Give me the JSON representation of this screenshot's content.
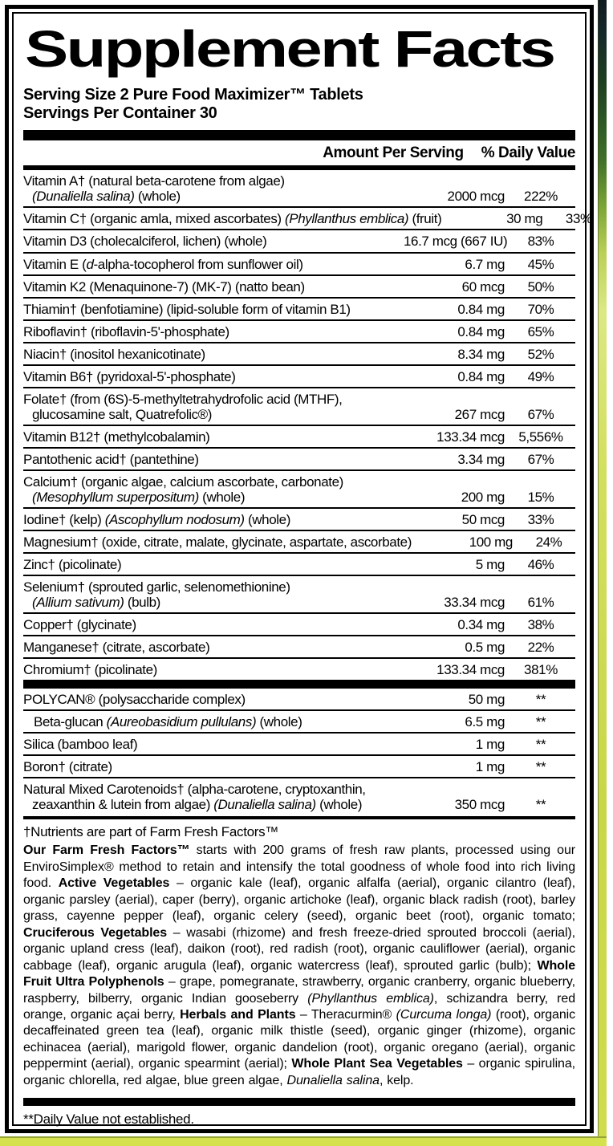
{
  "colors": {
    "label_background": "#ffffff",
    "label_border": "#000000",
    "bottom_strip": "#d6e14e",
    "right_strip_top": "#101820",
    "right_strip_bottom": "#cfdc4e"
  },
  "title": "Supplement Facts",
  "serving": {
    "size_line": "Serving Size 2 Pure Food Maximizer™ Tablets",
    "container_line": "Servings Per Container 30"
  },
  "columns": {
    "amount_header": "Amount Per Serving",
    "dv_header": "% Daily Value"
  },
  "nutrients": [
    {
      "group": 1,
      "lines": [
        [
          {
            "t": "Vitamin A† (natural beta-carotene from algae)"
          }
        ],
        [
          {
            "t": "(Dunaliella salina)",
            "i": true
          },
          {
            "t": " (whole)"
          }
        ]
      ],
      "amount": "2000 mcg",
      "dv": "222%"
    },
    {
      "group": 1,
      "lines": [
        [
          {
            "t": "Vitamin C† (organic amla, mixed ascorbates) "
          },
          {
            "t": "(Phyllanthus emblica)",
            "i": true
          },
          {
            "t": " (fruit)"
          }
        ]
      ],
      "amount": "30 mg",
      "dv": "33%"
    },
    {
      "group": 1,
      "lines": [
        [
          {
            "t": "Vitamin D3 (cholecalciferol, lichen) (whole)"
          }
        ]
      ],
      "amount": "16.7 mcg (667 IU)",
      "dv": "83%"
    },
    {
      "group": 1,
      "lines": [
        [
          {
            "t": "Vitamin E ("
          },
          {
            "t": "d",
            "i": true
          },
          {
            "t": "-alpha-tocopherol from sunflower oil)"
          }
        ]
      ],
      "amount": "6.7 mg",
      "dv": "45%"
    },
    {
      "group": 1,
      "lines": [
        [
          {
            "t": "Vitamin K2 (Menaquinone-7) (MK-7) (natto bean)"
          }
        ]
      ],
      "amount": "60 mcg",
      "dv": "50%"
    },
    {
      "group": 1,
      "lines": [
        [
          {
            "t": "Thiamin† (benfotiamine) (lipid-soluble form of vitamin B1)"
          }
        ]
      ],
      "amount": "0.84 mg",
      "dv": "70%"
    },
    {
      "group": 1,
      "lines": [
        [
          {
            "t": "Riboflavin† (riboflavin-5'-phosphate)"
          }
        ]
      ],
      "amount": "0.84 mg",
      "dv": "65%"
    },
    {
      "group": 1,
      "lines": [
        [
          {
            "t": "Niacin† (inositol hexanicotinate)"
          }
        ]
      ],
      "amount": "8.34 mg",
      "dv": "52%"
    },
    {
      "group": 1,
      "lines": [
        [
          {
            "t": "Vitamin B6† (pyridoxal-5'-phosphate)"
          }
        ]
      ],
      "amount": "0.84 mg",
      "dv": "49%"
    },
    {
      "group": 1,
      "lines": [
        [
          {
            "t": "Folate† (from (6S)-5-methyltetrahydrofolic acid (MTHF),"
          }
        ],
        [
          {
            "t": "glucosamine salt, Quatrefolic®)"
          }
        ]
      ],
      "amount": "267 mcg",
      "dv": "67%"
    },
    {
      "group": 1,
      "lines": [
        [
          {
            "t": "Vitamin B12† (methylcobalamin)"
          }
        ]
      ],
      "amount": "133.34 mcg",
      "dv": "5,556%"
    },
    {
      "group": 1,
      "lines": [
        [
          {
            "t": "Pantothenic acid† (pantethine)"
          }
        ]
      ],
      "amount": "3.34 mg",
      "dv": "67%"
    },
    {
      "group": 1,
      "lines": [
        [
          {
            "t": "Calcium† (organic algae, calcium ascorbate, carbonate)"
          }
        ],
        [
          {
            "t": "(Mesophyllum superpositum)",
            "i": true
          },
          {
            "t": " (whole)"
          }
        ]
      ],
      "amount": "200 mg",
      "dv": "15%"
    },
    {
      "group": 1,
      "lines": [
        [
          {
            "t": "Iodine† (kelp) "
          },
          {
            "t": "(Ascophyllum nodosum)",
            "i": true
          },
          {
            "t": " (whole)"
          }
        ]
      ],
      "amount": "50 mcg",
      "dv": "33%"
    },
    {
      "group": 1,
      "lines": [
        [
          {
            "t": "Magnesium† (oxide, citrate, malate, glycinate, aspartate, ascorbate)"
          }
        ]
      ],
      "amount": "100 mg",
      "dv": "24%"
    },
    {
      "group": 1,
      "lines": [
        [
          {
            "t": "Zinc† (picolinate)"
          }
        ]
      ],
      "amount": "5 mg",
      "dv": "46%"
    },
    {
      "group": 1,
      "lines": [
        [
          {
            "t": "Selenium† (sprouted garlic, selenomethionine)"
          }
        ],
        [
          {
            "t": "(Allium sativum)",
            "i": true
          },
          {
            "t": " (bulb)"
          }
        ]
      ],
      "amount": "33.34 mcg",
      "dv": "61%"
    },
    {
      "group": 1,
      "lines": [
        [
          {
            "t": "Copper† (glycinate)"
          }
        ]
      ],
      "amount": "0.34 mg",
      "dv": "38%"
    },
    {
      "group": 1,
      "lines": [
        [
          {
            "t": "Manganese† (citrate, ascorbate)"
          }
        ]
      ],
      "amount": "0.5 mg",
      "dv": "22%"
    },
    {
      "group": 1,
      "lines": [
        [
          {
            "t": "Chromium† (picolinate)"
          }
        ]
      ],
      "amount": "133.34 mcg",
      "dv": "381%"
    },
    {
      "group": 2,
      "lines": [
        [
          {
            "t": "POLYCAN® (polysaccharide complex)"
          }
        ]
      ],
      "amount": "50 mg",
      "dv": "**"
    },
    {
      "group": 2,
      "indent": true,
      "lines": [
        [
          {
            "t": "Beta-glucan "
          },
          {
            "t": "(Aureobasidium pullulans)",
            "i": true
          },
          {
            "t": " (whole)"
          }
        ]
      ],
      "amount": "6.5 mg",
      "dv": "**"
    },
    {
      "group": 2,
      "lines": [
        [
          {
            "t": "Silica (bamboo leaf)"
          }
        ]
      ],
      "amount": "1 mg",
      "dv": "**"
    },
    {
      "group": 2,
      "lines": [
        [
          {
            "t": "Boron† (citrate)"
          }
        ]
      ],
      "amount": "1 mg",
      "dv": "**"
    },
    {
      "group": 2,
      "lines": [
        [
          {
            "t": "Natural Mixed Carotenoids† (alpha-carotene, cryptoxanthin,"
          }
        ],
        [
          {
            "t": "zeaxanthin & lutein from algae) "
          },
          {
            "t": "(Dunaliella salina)",
            "i": true
          },
          {
            "t": " (whole)"
          }
        ]
      ],
      "amount": "350 mcg",
      "dv": "**"
    }
  ],
  "dagger_footnote": "†Nutrients are part of Farm Fresh Factors™",
  "ingredients_segments": [
    {
      "t": "Our Farm Fresh Factors™",
      "b": true
    },
    {
      "t": " starts with 200 grams of fresh raw plants, processed using our EnviroSimplex® method to retain and intensify the total goodness of whole food into rich living food. "
    },
    {
      "t": "Active Vegetables",
      "b": true
    },
    {
      "t": " – organic kale (leaf), organic alfalfa (aerial), organic cilantro (leaf), organic parsley (aerial), caper (berry), organic artichoke (leaf), organic black radish (root), barley grass, cayenne pepper (leaf), organic celery (seed), organic beet (root), organic tomato; "
    },
    {
      "t": "Cruciferous Vegetables",
      "b": true
    },
    {
      "t": " – wasabi (rhizome) and fresh freeze-dried sprouted broccoli (aerial), organic upland cress (leaf), daikon (root), red radish (root), organic cauliflower (aerial), organic cabbage (leaf), organic arugula (leaf), organic watercress (leaf), sprouted garlic (bulb); "
    },
    {
      "t": "Whole Fruit Ultra Polyphenols",
      "b": true
    },
    {
      "t": " – grape, pomegranate, strawberry, organic cranberry, organic blueberry, raspberry, bilberry, organic Indian gooseberry "
    },
    {
      "t": "(Phyllanthus emblica)",
      "i": true
    },
    {
      "t": ", schizandra berry, red orange, organic açai berry, "
    },
    {
      "t": "Herbals and Plants",
      "b": true
    },
    {
      "t": " – Theracurmin® "
    },
    {
      "t": "(Curcuma longa)",
      "i": true
    },
    {
      "t": " (root), organic decaffeinated green tea (leaf), organic milk thistle (seed), organic ginger (rhizome), organic echinacea (aerial), marigold flower, organic dandelion (root), organic oregano (aerial), organic peppermint (aerial), organic spearmint (aerial); "
    },
    {
      "t": "Whole Plant Sea Vegetables",
      "b": true
    },
    {
      "t": " – organic spirulina, organic chlorella, red algae, blue green algae, "
    },
    {
      "t": "Dunaliella salina",
      "i": true
    },
    {
      "t": ", kelp."
    }
  ],
  "dv_footnote": "**Daily Value not established."
}
